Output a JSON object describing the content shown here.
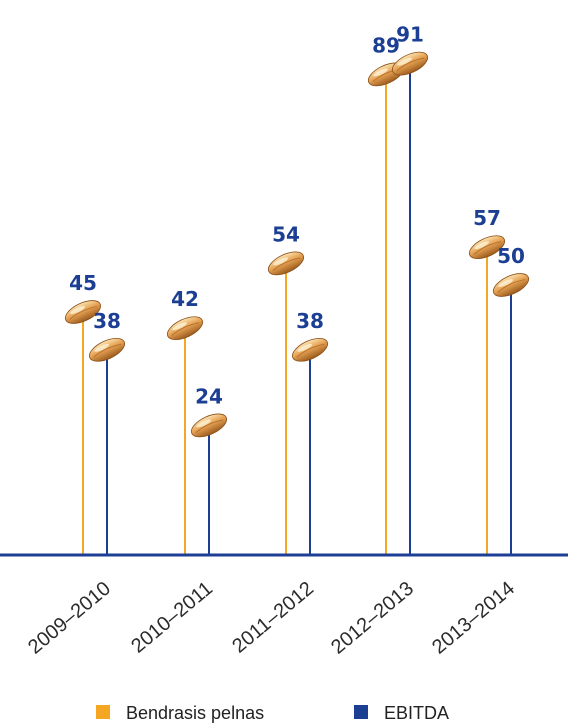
{
  "chart_data": {
    "type": "bar",
    "style": "lollipop with grain-shaped markers",
    "categories": [
      "2009–2010",
      "2010–2011",
      "2011–2012",
      "2012–2013",
      "2013–2014"
    ],
    "series": [
      {
        "name": "Bendrasis pelnas",
        "color": "#f5a623",
        "values": [
          45,
          42,
          54,
          89,
          57
        ]
      },
      {
        "name": "EBITDA",
        "color": "#1c3f94",
        "values": [
          38,
          24,
          38,
          91,
          50
        ]
      }
    ],
    "value_label_color": "#1c3f94",
    "axis_color": "#1c3f94",
    "legend_position": "bottom",
    "grid": false
  }
}
